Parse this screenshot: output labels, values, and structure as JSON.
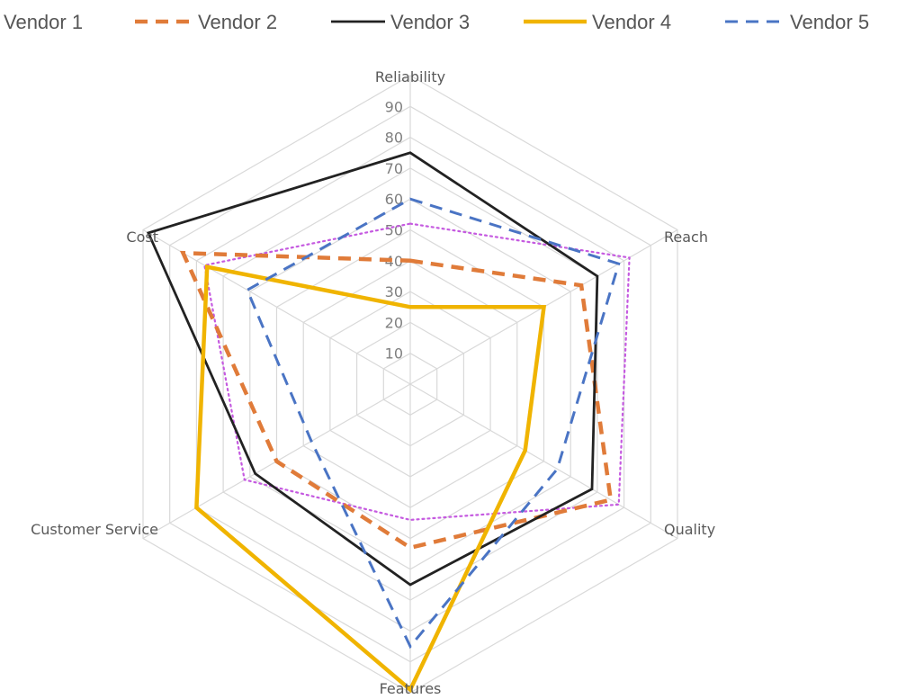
{
  "chart_data": {
    "type": "radar",
    "axes": [
      "Reliability",
      "Reach",
      "Quality",
      "Features",
      "Customer Service",
      "Cost"
    ],
    "ticks": [
      10,
      20,
      30,
      40,
      50,
      60,
      70,
      80,
      90
    ],
    "range": [
      0,
      100
    ],
    "grid": true,
    "legend_position": "top",
    "series": [
      {
        "name": "Vendor 1",
        "values": [
          52,
          82,
          78,
          44,
          62,
          77
        ],
        "color": "#c55ae0",
        "style": "dotted"
      },
      {
        "name": "Vendor 2",
        "values": [
          40,
          64,
          75,
          53,
          50,
          85
        ],
        "color": "#e07b39",
        "style": "dashed"
      },
      {
        "name": "Vendor 3",
        "values": [
          75,
          70,
          68,
          65,
          58,
          98
        ],
        "color": "#222222",
        "style": "solid"
      },
      {
        "name": "Vendor 4",
        "values": [
          25,
          50,
          43,
          99,
          80,
          76
        ],
        "color": "#f0b400",
        "style": "solid"
      },
      {
        "name": "Vendor 5",
        "values": [
          60,
          78,
          55,
          85,
          37,
          61
        ],
        "color": "#4a74c4",
        "style": "dashed"
      }
    ]
  }
}
